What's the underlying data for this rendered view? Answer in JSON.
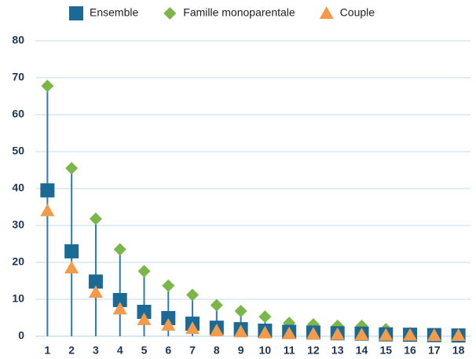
{
  "chart_data": {
    "type": "stem",
    "categories": [
      "1",
      "2",
      "3",
      "4",
      "5",
      "6",
      "7",
      "8",
      "9",
      "10",
      "11",
      "12",
      "13",
      "14",
      "15",
      "16",
      "17",
      "18"
    ],
    "series": [
      {
        "name": "Ensemble",
        "color": "#1b6a96",
        "marker": "square",
        "values": [
          39.5,
          23,
          14.8,
          9.8,
          6.6,
          4.9,
          3.4,
          2.3,
          1.9,
          1.5,
          1.2,
          1.0,
          0.8,
          0.7,
          0.5,
          0.4,
          0.3,
          0.2
        ]
      },
      {
        "name": "Famille monoparentale",
        "color": "#7ab648",
        "marker": "diamond",
        "values": [
          67.8,
          45.5,
          31.8,
          23.5,
          17.6,
          13.7,
          11.2,
          8.4,
          6.8,
          5.3,
          3.6,
          3.2,
          2.8,
          2.8,
          1.9,
          0.8,
          0.5,
          0.3
        ]
      },
      {
        "name": "Couple",
        "color": "#f39a4b",
        "marker": "triangle",
        "values": [
          34,
          18.5,
          11.9,
          7.4,
          4.5,
          3.0,
          2.1,
          1.5,
          1.2,
          0.9,
          0.7,
          0.6,
          0.5,
          0.4,
          0.3,
          0.3,
          0.2,
          0.2
        ]
      }
    ],
    "stem_color": "#2f7bb0",
    "ylim": [
      0,
      80
    ],
    "yticks": [
      0,
      10,
      20,
      30,
      40,
      50,
      60,
      70,
      80
    ],
    "grid": true,
    "grid_color": "#d6e8f5",
    "legend": "top"
  }
}
